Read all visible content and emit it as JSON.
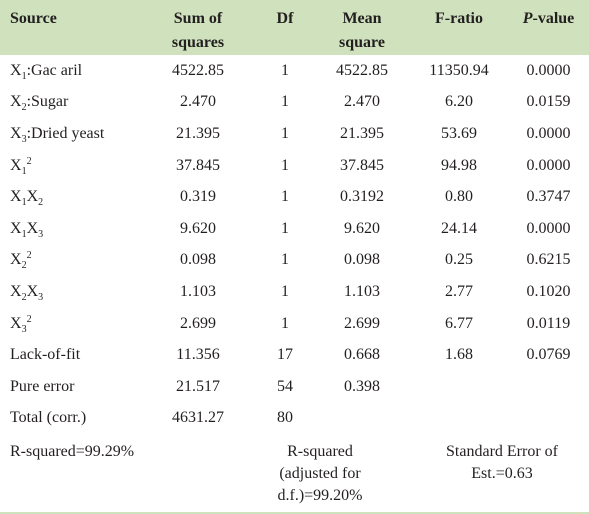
{
  "header": {
    "source": "Source",
    "ss_line1": "Sum of",
    "ss_line2": "squares",
    "df": "Df",
    "ms_line1": "Mean",
    "ms_line2": "square",
    "f": "F-ratio",
    "p_italic": "P",
    "p_rest": "-value"
  },
  "rows": [
    {
      "src": {
        "base1": "X",
        "sub1": "1",
        "text": ":Gac aril"
      },
      "ss": "4522.85",
      "df": "1",
      "ms": "4522.85",
      "f": "11350.94",
      "p": "0.0000"
    },
    {
      "src": {
        "base1": "X",
        "sub1": "2",
        "text": ":Sugar"
      },
      "ss": "2.470",
      "df": "1",
      "ms": "2.470",
      "f": "6.20",
      "p": "0.0159"
    },
    {
      "src": {
        "base1": "X",
        "sub1": "3",
        "text": ":Dried yeast"
      },
      "ss": "21.395",
      "df": "1",
      "ms": "21.395",
      "f": "53.69",
      "p": "0.0000"
    },
    {
      "src": {
        "base1": "X",
        "sub1": "1",
        "sup1": "2"
      },
      "ss": "37.845",
      "df": "1",
      "ms": "37.845",
      "f": "94.98",
      "p": "0.0000"
    },
    {
      "src": {
        "base1": "X",
        "sub1": "1",
        "base2": "X",
        "sub2": "2"
      },
      "ss": "0.319",
      "df": "1",
      "ms": "0.3192",
      "f": "0.80",
      "p": "0.3747"
    },
    {
      "src": {
        "base1": "X",
        "sub1": "1",
        "base2": "X",
        "sub2": "3"
      },
      "ss": "9.620",
      "df": "1",
      "ms": "9.620",
      "f": "24.14",
      "p": "0.0000"
    },
    {
      "src": {
        "base1": "X",
        "sub1": "2",
        "sup1": "2"
      },
      "ss": "0.098",
      "df": "1",
      "ms": "0.098",
      "f": "0.25",
      "p": "0.6215"
    },
    {
      "src": {
        "base1": "X",
        "sub1": "2",
        "base2": "X",
        "sub2": "3"
      },
      "ss": "1.103",
      "df": "1",
      "ms": "1.103",
      "f": "2.77",
      "p": "0.1020"
    },
    {
      "src": {
        "base1": "X",
        "sub1": "3",
        "sup1": "2"
      },
      "ss": "2.699",
      "df": "1",
      "ms": "2.699",
      "f": "6.77",
      "p": "0.0119"
    },
    {
      "src": {
        "text": "Lack-of-fit"
      },
      "ss": "11.356",
      "df": "17",
      "ms": "0.668",
      "f": "1.68",
      "p": "0.0769"
    },
    {
      "src": {
        "text": "Pure error"
      },
      "ss": "21.517",
      "df": "54",
      "ms": "0.398",
      "f": "",
      "p": ""
    },
    {
      "src": {
        "text": "Total (corr.)"
      },
      "ss": "4631.27",
      "df": "80",
      "ms": "",
      "f": "",
      "p": ""
    }
  ],
  "footer": {
    "r_squared": "R-squared=99.29%",
    "adj_line1": "R-squared",
    "adj_line2": "(adjusted for",
    "adj_line3": "d.f.)=99.20%",
    "se_line1": "Standard Error of",
    "se_line2": "Est.=0.63"
  }
}
